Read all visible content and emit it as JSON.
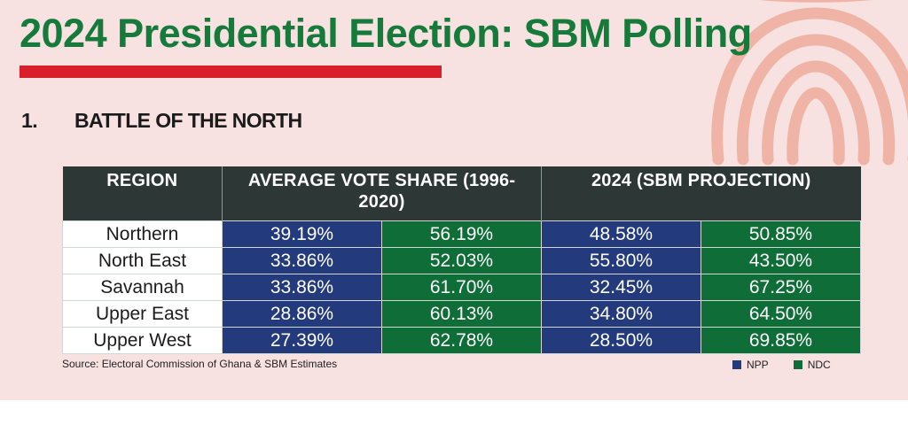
{
  "colors": {
    "npp": "#233a7d",
    "ndc": "#0f6e37",
    "header": "#2d3735",
    "title": "#157a3a",
    "accent": "#d81f2a",
    "background": "#f7e1e1"
  },
  "chart_data": {
    "type": "table",
    "title": "2024 Presidential Election: SBM Polling",
    "section_number": "1.",
    "section_title": "BATTLE OF THE NORTH",
    "headers": {
      "region": "REGION",
      "average": "AVERAGE VOTE SHARE (1996-2020)",
      "projection": "2024 (SBM PROJECTION)"
    },
    "rows": [
      {
        "region": "Northern",
        "avg_npp": "39.19%",
        "avg_ndc": "56.19%",
        "proj_npp": "48.58%",
        "proj_ndc": "50.85%"
      },
      {
        "region": "North East",
        "avg_npp": "33.86%",
        "avg_ndc": "52.03%",
        "proj_npp": "55.80%",
        "proj_ndc": "43.50%"
      },
      {
        "region": "Savannah",
        "avg_npp": "33.86%",
        "avg_ndc": "61.70%",
        "proj_npp": "32.45%",
        "proj_ndc": "67.25%"
      },
      {
        "region": "Upper East",
        "avg_npp": "28.86%",
        "avg_ndc": "60.13%",
        "proj_npp": "34.80%",
        "proj_ndc": "64.50%"
      },
      {
        "region": "Upper West",
        "avg_npp": "27.39%",
        "avg_ndc": "62.78%",
        "proj_npp": "28.50%",
        "proj_ndc": "69.85%"
      }
    ],
    "source": "Source: Electoral Commission of Ghana & SBM Estimates",
    "legend": [
      "NPP",
      "NDC"
    ]
  }
}
